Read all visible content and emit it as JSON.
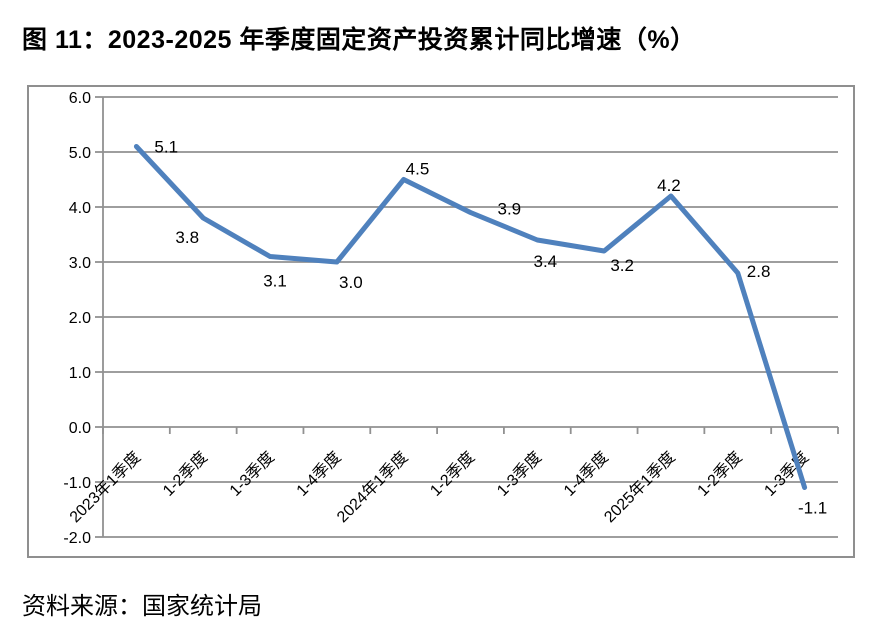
{
  "header": {
    "figure_label": "图 11：",
    "title": "2023-2025 年季度固定资产投资累计同比增速（%）"
  },
  "source": "资料来源：国家统计局",
  "colors": {
    "line": "#4F81BD",
    "grid": "#919191",
    "frame": "#8f8f8f",
    "text": "#000000",
    "background": "#ffffff"
  },
  "chart_data": {
    "type": "line",
    "title": "2023-2025 年季度固定资产投资累计同比增速（%）",
    "unit": "%",
    "categories": [
      "2023年1季度",
      "1-2季度",
      "1-3季度",
      "1-4季度",
      "2024年1季度",
      "1-2季度",
      "1-3季度",
      "1-4季度",
      "2025年1季度",
      "1-2季度",
      "1-3季度"
    ],
    "values": [
      5.1,
      3.8,
      3.1,
      3.0,
      4.5,
      3.9,
      3.4,
      3.2,
      4.2,
      2.8,
      -1.1
    ],
    "xlabel": "",
    "ylabel": "",
    "ylim": [
      -2.0,
      6.0
    ],
    "ytick_step": 1.0,
    "ytick_labels": [
      "6.0",
      "5.0",
      "4.0",
      "3.0",
      "2.0",
      "1.0",
      "0.0",
      "-1.0",
      "-2.0"
    ],
    "grid": true,
    "legend_position": "none",
    "data_labels_shown": true,
    "x_labels_rotation_deg": 45
  }
}
